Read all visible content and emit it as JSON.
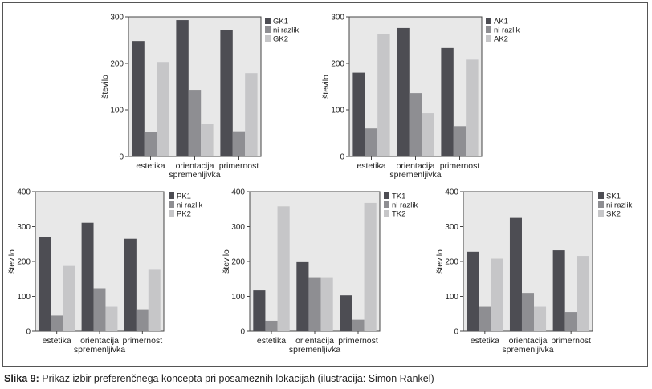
{
  "caption": {
    "label": "Slika 9:",
    "text": "Prikaz izbir preferenčnega koncepta pri posameznih lokacijah (ilustracija: Simon Rankel)"
  },
  "colors": {
    "series1": "#4d4d53",
    "series2": "#8e8e92",
    "series3": "#c6c6c8",
    "plot_bg": "#e8e8e8"
  },
  "chart_data": [
    {
      "type": "bar",
      "ylabel": "število",
      "ylim": [
        0,
        300
      ],
      "yticks": [
        0,
        100,
        200,
        300
      ],
      "categories": [
        "estetika",
        "orientacija spremenljivka",
        "primernost"
      ],
      "series": [
        {
          "name": "GK1",
          "values": [
            248,
            293,
            271
          ]
        },
        {
          "name": "ni razlik",
          "values": [
            53,
            143,
            54
          ]
        },
        {
          "name": "GK2",
          "values": [
            203,
            70,
            179
          ]
        }
      ],
      "legend": "top-right"
    },
    {
      "type": "bar",
      "ylabel": "število",
      "ylim": [
        0,
        300
      ],
      "yticks": [
        0,
        100,
        200,
        300
      ],
      "categories": [
        "estetika",
        "orientacija spremenljivka",
        "primernost"
      ],
      "series": [
        {
          "name": "AK1",
          "values": [
            180,
            276,
            233
          ]
        },
        {
          "name": "ni razlik",
          "values": [
            60,
            136,
            65
          ]
        },
        {
          "name": "AK2",
          "values": [
            263,
            93,
            208
          ]
        }
      ],
      "legend": "top-right"
    },
    {
      "type": "bar",
      "ylabel": "število",
      "ylim": [
        0,
        400
      ],
      "yticks": [
        0,
        100,
        200,
        300,
        400
      ],
      "categories": [
        "estetika",
        "orientacija spremenljivka",
        "primernost"
      ],
      "series": [
        {
          "name": "PK1",
          "values": [
            270,
            311,
            265
          ]
        },
        {
          "name": "ni razlik",
          "values": [
            45,
            123,
            63
          ]
        },
        {
          "name": "PK2",
          "values": [
            187,
            70,
            176
          ]
        }
      ],
      "legend": "top-right"
    },
    {
      "type": "bar",
      "ylabel": "število",
      "ylim": [
        0,
        400
      ],
      "yticks": [
        0,
        100,
        200,
        300,
        400
      ],
      "categories": [
        "estetika",
        "orientacija spremenljivka",
        "primernost"
      ],
      "series": [
        {
          "name": "TK1",
          "values": [
            117,
            198,
            103
          ]
        },
        {
          "name": "ni razlik",
          "values": [
            30,
            155,
            33
          ]
        },
        {
          "name": "TK2",
          "values": [
            358,
            155,
            368
          ]
        }
      ],
      "legend": "top-right"
    },
    {
      "type": "bar",
      "ylabel": "število",
      "ylim": [
        0,
        400
      ],
      "yticks": [
        0,
        100,
        200,
        300,
        400
      ],
      "categories": [
        "estetika",
        "orientacija spremenljivka",
        "primernost"
      ],
      "series": [
        {
          "name": "SK1",
          "values": [
            228,
            325,
            232
          ]
        },
        {
          "name": "ni razlik",
          "values": [
            70,
            110,
            55
          ]
        },
        {
          "name": "SK2",
          "values": [
            208,
            70,
            216
          ]
        }
      ],
      "legend": "top-right"
    }
  ]
}
